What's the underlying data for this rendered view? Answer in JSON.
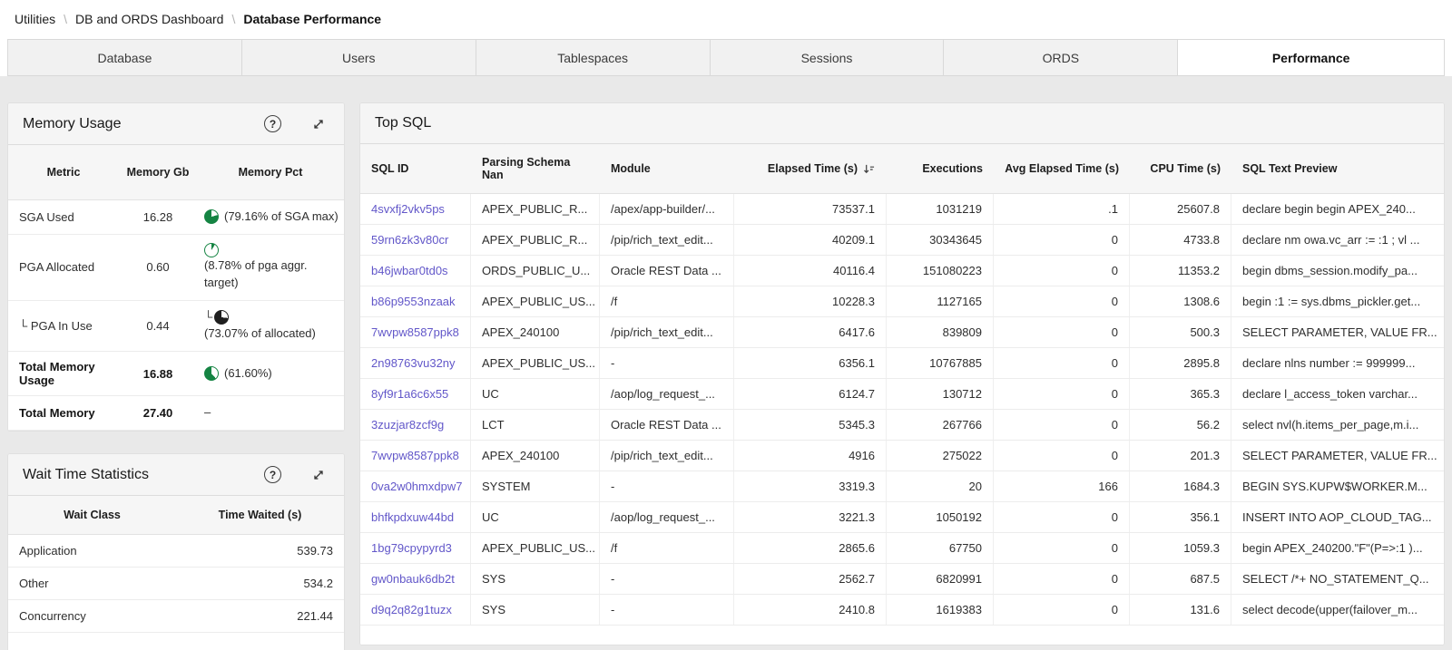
{
  "colors": {
    "accent_green": "#158443",
    "pie_dark": "#1f1f1f",
    "link": "#6257c9"
  },
  "breadcrumb": {
    "separator": "\\",
    "items": [
      "Utilities",
      "DB and ORDS Dashboard",
      "Database Performance"
    ]
  },
  "tabs": [
    {
      "label": "Database",
      "active": false
    },
    {
      "label": "Users",
      "active": false
    },
    {
      "label": "Tablespaces",
      "active": false
    },
    {
      "label": "Sessions",
      "active": false
    },
    {
      "label": "ORDS",
      "active": false
    },
    {
      "label": "Performance",
      "active": true
    }
  ],
  "memory_usage": {
    "title": "Memory Usage",
    "help_icon": "?",
    "columns": [
      "Metric",
      "Memory Gb",
      "Memory Pct"
    ],
    "rows": [
      {
        "metric": "SGA Used",
        "gb": "16.28",
        "pct_label": "(79.16% of SGA max)",
        "pie": {
          "percent": 79.16,
          "color": "#158443",
          "style": "solid"
        }
      },
      {
        "metric": "PGA Allocated",
        "gb": "0.60",
        "pct_label": "(8.78% of pga aggr. target)",
        "pie": {
          "percent": 8.78,
          "color": "#158443",
          "style": "outline"
        }
      },
      {
        "metric": "└ PGA In Use",
        "gb": "0.44",
        "pct_label": "(73.07% of allocated)",
        "pie": {
          "percent": 73.07,
          "color": "#1f1f1f",
          "style": "solid",
          "prefix": "└"
        }
      },
      {
        "metric": "Total Memory Usage",
        "gb": "16.88",
        "pct_label": "(61.60%)",
        "bold": true,
        "pie": {
          "percent": 61.6,
          "color": "#158443",
          "style": "solid"
        }
      },
      {
        "metric": "Total Memory",
        "gb": "27.40",
        "pct_label": "–",
        "bold": true
      }
    ]
  },
  "wait_time": {
    "title": "Wait Time Statistics",
    "help_icon": "?",
    "columns": [
      "Wait Class",
      "Time Waited (s)"
    ],
    "rows": [
      {
        "wait_class": "Application",
        "time_waited": "539.73"
      },
      {
        "wait_class": "Other",
        "time_waited": "534.2"
      },
      {
        "wait_class": "Concurrency",
        "time_waited": "221.44"
      }
    ]
  },
  "top_sql": {
    "title": "Top SQL",
    "columns": [
      "SQL ID",
      "Parsing Schema Nan",
      "Module",
      "Elapsed Time (s)",
      "Executions",
      "Avg Elapsed Time (s)",
      "CPU Time (s)",
      "SQL Text Preview"
    ],
    "sorted_by": "Elapsed Time (s)",
    "sort_direction": "descending",
    "rows": [
      {
        "sql_id": "4svxfj2vkv5ps",
        "schema": "APEX_PUBLIC_R...",
        "module": "/apex/app-builder/...",
        "elapsed": "73537.1",
        "executions": "1031219",
        "avg_elapsed": ".1",
        "cpu": "25607.8",
        "preview": "declare begin begin APEX_240..."
      },
      {
        "sql_id": "59rn6zk3v80cr",
        "schema": "APEX_PUBLIC_R...",
        "module": "/pip/rich_text_edit...",
        "elapsed": "40209.1",
        "executions": "30343645",
        "avg_elapsed": "0",
        "cpu": "4733.8",
        "preview": "declare nm owa.vc_arr := :1 ; vl ..."
      },
      {
        "sql_id": "b46jwbar0td0s",
        "schema": "ORDS_PUBLIC_U...",
        "module": "Oracle REST Data ...",
        "elapsed": "40116.4",
        "executions": "151080223",
        "avg_elapsed": "0",
        "cpu": "11353.2",
        "preview": "begin dbms_session.modify_pa..."
      },
      {
        "sql_id": "b86p9553nzaak",
        "schema": "APEX_PUBLIC_US...",
        "module": "/f",
        "elapsed": "10228.3",
        "executions": "1127165",
        "avg_elapsed": "0",
        "cpu": "1308.6",
        "preview": "begin :1 := sys.dbms_pickler.get..."
      },
      {
        "sql_id": "7wvpw8587ppk8",
        "schema": "APEX_240100",
        "module": "/pip/rich_text_edit...",
        "elapsed": "6417.6",
        "executions": "839809",
        "avg_elapsed": "0",
        "cpu": "500.3",
        "preview": "SELECT PARAMETER, VALUE FR..."
      },
      {
        "sql_id": "2n98763vu32ny",
        "schema": "APEX_PUBLIC_US...",
        "module": "-",
        "elapsed": "6356.1",
        "executions": "10767885",
        "avg_elapsed": "0",
        "cpu": "2895.8",
        "preview": "declare nlns number := 999999..."
      },
      {
        "sql_id": "8yf9r1a6c6x55",
        "schema": "UC",
        "module": "/aop/log_request_...",
        "elapsed": "6124.7",
        "executions": "130712",
        "avg_elapsed": "0",
        "cpu": "365.3",
        "preview": "declare l_access_token varchar..."
      },
      {
        "sql_id": "3zuzjar8zcf9g",
        "schema": "LCT",
        "module": "Oracle REST Data ...",
        "elapsed": "5345.3",
        "executions": "267766",
        "avg_elapsed": "0",
        "cpu": "56.2",
        "preview": "select nvl(h.items_per_page,m.i..."
      },
      {
        "sql_id": "7wvpw8587ppk8",
        "schema": "APEX_240100",
        "module": "/pip/rich_text_edit...",
        "elapsed": "4916",
        "executions": "275022",
        "avg_elapsed": "0",
        "cpu": "201.3",
        "preview": "SELECT PARAMETER, VALUE FR..."
      },
      {
        "sql_id": "0va2w0hmxdpw7",
        "schema": "SYSTEM",
        "module": "-",
        "elapsed": "3319.3",
        "executions": "20",
        "avg_elapsed": "166",
        "cpu": "1684.3",
        "preview": "BEGIN SYS.KUPW$WORKER.M..."
      },
      {
        "sql_id": "bhfkpdxuw44bd",
        "schema": "UC",
        "module": "/aop/log_request_...",
        "elapsed": "3221.3",
        "executions": "1050192",
        "avg_elapsed": "0",
        "cpu": "356.1",
        "preview": "INSERT INTO AOP_CLOUD_TAG..."
      },
      {
        "sql_id": "1bg79cpypyrd3",
        "schema": "APEX_PUBLIC_US...",
        "module": "/f",
        "elapsed": "2865.6",
        "executions": "67750",
        "avg_elapsed": "0",
        "cpu": "1059.3",
        "preview": "begin APEX_240200.\"F\"(P=>:1 )..."
      },
      {
        "sql_id": "gw0nbauk6db2t",
        "schema": "SYS",
        "module": "-",
        "elapsed": "2562.7",
        "executions": "6820991",
        "avg_elapsed": "0",
        "cpu": "687.5",
        "preview": "SELECT /*+ NO_STATEMENT_Q..."
      },
      {
        "sql_id": "d9q2q82g1tuzx",
        "schema": "SYS",
        "module": "-",
        "elapsed": "2410.8",
        "executions": "1619383",
        "avg_elapsed": "0",
        "cpu": "131.6",
        "preview": "select decode(upper(failover_m..."
      }
    ]
  }
}
